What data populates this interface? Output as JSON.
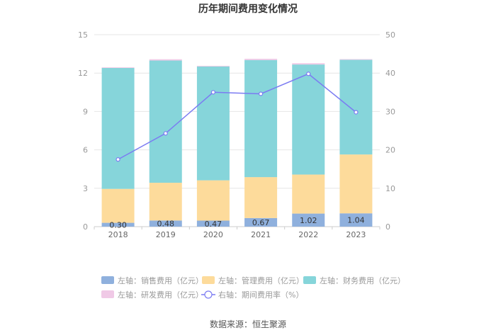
{
  "chart_data": {
    "type": "bar",
    "title": "历年期间费用变化情况",
    "source": "数据来源：恒生聚源",
    "categories": [
      "2018",
      "2019",
      "2020",
      "2021",
      "2022",
      "2023"
    ],
    "y_left": {
      "ylim": [
        0,
        15
      ],
      "ticks": [
        "0",
        "3",
        "6",
        "9",
        "12",
        "15"
      ]
    },
    "y_right": {
      "ylim": [
        0,
        50
      ],
      "ticks": [
        "0",
        "10",
        "20",
        "30",
        "40",
        "50"
      ]
    },
    "series": [
      {
        "name": "左轴：销售费用（亿元）",
        "type": "bar",
        "axis": "left",
        "color": "#8fb0dd",
        "values": [
          0.3,
          0.48,
          0.47,
          0.67,
          1.02,
          1.04
        ],
        "labels": [
          "0.30",
          "0.48",
          "0.47",
          "0.67",
          "1.02",
          "1.04"
        ]
      },
      {
        "name": "左轴：管理费用（亿元）",
        "type": "bar",
        "axis": "left",
        "color": "#fddb9b",
        "values": [
          2.65,
          2.95,
          3.15,
          3.2,
          3.05,
          4.6
        ]
      },
      {
        "name": "左轴：财务费用（亿元）",
        "type": "bar",
        "axis": "left",
        "color": "#86d5da",
        "values": [
          9.45,
          9.55,
          8.9,
          9.15,
          8.6,
          7.4
        ]
      },
      {
        "name": "左轴：研发费用（亿元）",
        "type": "bar",
        "axis": "left",
        "color": "#f0c9e6",
        "values": [
          0.05,
          0.1,
          0.05,
          0.1,
          0.1,
          0.05
        ]
      },
      {
        "name": "右轴：期间费用率（%）",
        "type": "line",
        "axis": "right",
        "color": "#7b7bf2",
        "values": [
          17.5,
          24.3,
          35.0,
          34.6,
          39.8,
          29.8
        ]
      }
    ]
  }
}
